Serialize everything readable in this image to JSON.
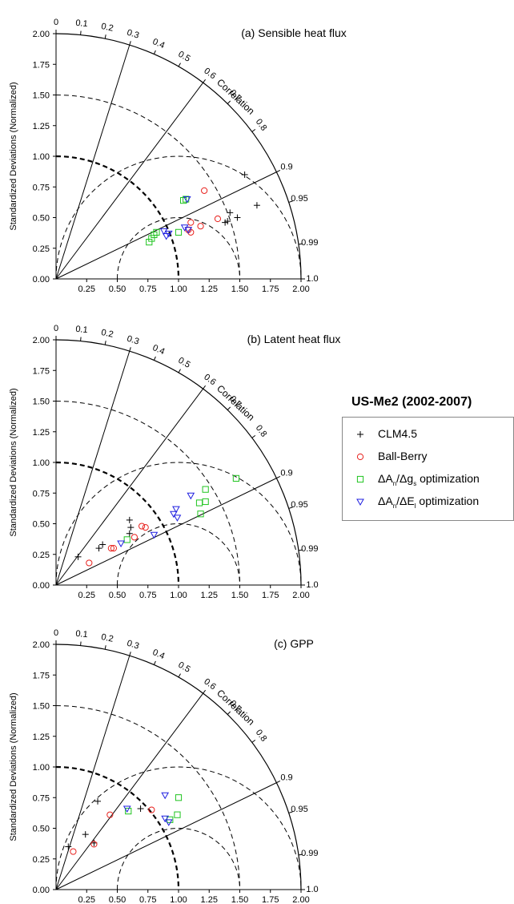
{
  "legend": {
    "title": "US-Me2 (2002-2007)",
    "items": [
      {
        "marker": "plus",
        "color": "#000000",
        "parts": [
          [
            "CLM4.5",
            ""
          ]
        ]
      },
      {
        "marker": "circle",
        "color": "#e8211d",
        "parts": [
          [
            "Ball-Berry",
            ""
          ]
        ]
      },
      {
        "marker": "square",
        "color": "#1fc41f",
        "parts": [
          [
            "ΔA",
            ""
          ],
          [
            "n",
            "sub"
          ],
          [
            "/Δg",
            ""
          ],
          [
            "s",
            "sub"
          ],
          [
            " optimization",
            ""
          ]
        ]
      },
      {
        "marker": "triangle",
        "color": "#1f1fe0",
        "parts": [
          [
            "ΔA",
            ""
          ],
          [
            "n",
            "sub"
          ],
          [
            "/ΔE",
            ""
          ],
          [
            "l",
            "sub"
          ],
          [
            " optimization",
            ""
          ]
        ]
      }
    ]
  },
  "chart_data": [
    {
      "type": "scatter",
      "title": "(a) Sensible heat flux",
      "ylabel": "Standardized Deviations (Normalized)",
      "correlation_label": "Correlation",
      "xlim": [
        0,
        2
      ],
      "ylim": [
        0,
        2
      ],
      "x_ticks": [
        "0.25",
        "0.50",
        "0.75",
        "1.00",
        "1.25",
        "1.50",
        "1.75",
        "2.00"
      ],
      "y_ticks": [
        "0.00",
        "0.25",
        "0.50",
        "0.75",
        "1.00",
        "1.25",
        "1.50",
        "1.75",
        "2.00"
      ],
      "corr_ticks": [
        "0",
        "0.1",
        "0.2",
        "0.3",
        "0.4",
        "0.5",
        "0.6",
        "0.7",
        "0.8",
        "0.9",
        "0.95",
        "0.99",
        "1.0"
      ],
      "series": [
        {
          "name": "CLM4.5",
          "points": [
            [
              1.54,
              0.85
            ],
            [
              1.64,
              0.6
            ],
            [
              1.48,
              0.5
            ],
            [
              1.42,
              0.54
            ],
            [
              1.38,
              0.46
            ],
            [
              1.4,
              0.47
            ]
          ]
        },
        {
          "name": "Ball-Berry",
          "points": [
            [
              1.21,
              0.72
            ],
            [
              1.32,
              0.49
            ],
            [
              1.1,
              0.46
            ],
            [
              1.18,
              0.43
            ],
            [
              1.1,
              0.38
            ],
            [
              1.08,
              0.4
            ]
          ]
        },
        {
          "name": "ΔAn/Δgs optimization",
          "points": [
            [
              1.04,
              0.64
            ],
            [
              1.06,
              0.65
            ],
            [
              0.76,
              0.3
            ],
            [
              0.8,
              0.36
            ],
            [
              0.82,
              0.38
            ],
            [
              0.78,
              0.33
            ],
            [
              1.0,
              0.38
            ]
          ]
        },
        {
          "name": "ΔAn/ΔEl optimization",
          "points": [
            [
              1.07,
              0.65
            ],
            [
              0.9,
              0.35
            ],
            [
              0.92,
              0.37
            ],
            [
              0.88,
              0.39
            ],
            [
              1.05,
              0.42
            ],
            [
              1.08,
              0.4
            ]
          ]
        }
      ]
    },
    {
      "type": "scatter",
      "title": "(b) Latent heat flux",
      "ylabel": "Standardized Deviations (Normalized)",
      "correlation_label": "Correlation",
      "xlim": [
        0,
        2
      ],
      "ylim": [
        0,
        2
      ],
      "x_ticks": [
        "0.25",
        "0.50",
        "0.75",
        "1.00",
        "1.25",
        "1.50",
        "1.75",
        "2.00"
      ],
      "y_ticks": [
        "0.00",
        "0.25",
        "0.50",
        "0.75",
        "1.00",
        "1.25",
        "1.50",
        "1.75",
        "2.00"
      ],
      "corr_ticks": [
        "0",
        "0.1",
        "0.2",
        "0.3",
        "0.4",
        "0.5",
        "0.6",
        "0.7",
        "0.8",
        "0.9",
        "0.95",
        "0.99",
        "1.0"
      ],
      "series": [
        {
          "name": "CLM4.5",
          "points": [
            [
              0.18,
              0.23
            ],
            [
              0.35,
              0.3
            ],
            [
              0.38,
              0.33
            ],
            [
              0.6,
              0.53
            ],
            [
              0.61,
              0.47
            ],
            [
              0.6,
              0.42
            ]
          ]
        },
        {
          "name": "Ball-Berry",
          "points": [
            [
              0.27,
              0.18
            ],
            [
              0.45,
              0.3
            ],
            [
              0.47,
              0.3
            ],
            [
              0.64,
              0.39
            ],
            [
              0.7,
              0.48
            ],
            [
              0.73,
              0.47
            ]
          ]
        },
        {
          "name": "ΔAn/Δgs optimization",
          "points": [
            [
              1.47,
              0.87
            ],
            [
              1.22,
              0.78
            ],
            [
              1.17,
              0.67
            ],
            [
              1.22,
              0.68
            ],
            [
              1.18,
              0.58
            ],
            [
              0.58,
              0.37
            ]
          ]
        },
        {
          "name": "ΔAn/ΔEl optimization",
          "points": [
            [
              1.1,
              0.73
            ],
            [
              0.98,
              0.62
            ],
            [
              0.96,
              0.58
            ],
            [
              0.99,
              0.55
            ],
            [
              0.8,
              0.41
            ],
            [
              0.53,
              0.34
            ]
          ]
        }
      ]
    },
    {
      "type": "scatter",
      "title": "(c) GPP",
      "ylabel": "Standardized Deviations (Normalized)",
      "correlation_label": "Correlation",
      "xlim": [
        0,
        2
      ],
      "ylim": [
        0,
        2
      ],
      "x_ticks": [
        "0.25",
        "0.50",
        "0.75",
        "1.00",
        "1.25",
        "1.50",
        "1.75",
        "2.00"
      ],
      "y_ticks": [
        "0.00",
        "0.25",
        "0.50",
        "0.75",
        "1.00",
        "1.25",
        "1.50",
        "1.75",
        "2.00"
      ],
      "corr_ticks": [
        "0",
        "0.1",
        "0.2",
        "0.3",
        "0.4",
        "0.5",
        "0.6",
        "0.7",
        "0.8",
        "0.9",
        "0.95",
        "0.99",
        "1.0"
      ],
      "series": [
        {
          "name": "CLM4.5",
          "points": [
            [
              0.1,
              0.35
            ],
            [
              0.24,
              0.45
            ],
            [
              0.34,
              0.72
            ],
            [
              0.69,
              0.66
            ],
            [
              0.31,
              0.38
            ]
          ]
        },
        {
          "name": "Ball-Berry",
          "points": [
            [
              0.14,
              0.31
            ],
            [
              0.31,
              0.37
            ],
            [
              0.44,
              0.61
            ],
            [
              0.78,
              0.65
            ]
          ]
        },
        {
          "name": "ΔAn/Δgs optimization",
          "points": [
            [
              0.59,
              0.64
            ],
            [
              1.0,
              0.75
            ],
            [
              0.99,
              0.61
            ],
            [
              0.93,
              0.57
            ]
          ]
        },
        {
          "name": "ΔAn/ΔEl optimization",
          "points": [
            [
              0.58,
              0.66
            ],
            [
              0.89,
              0.77
            ],
            [
              0.89,
              0.58
            ],
            [
              0.92,
              0.55
            ]
          ]
        }
      ]
    }
  ]
}
